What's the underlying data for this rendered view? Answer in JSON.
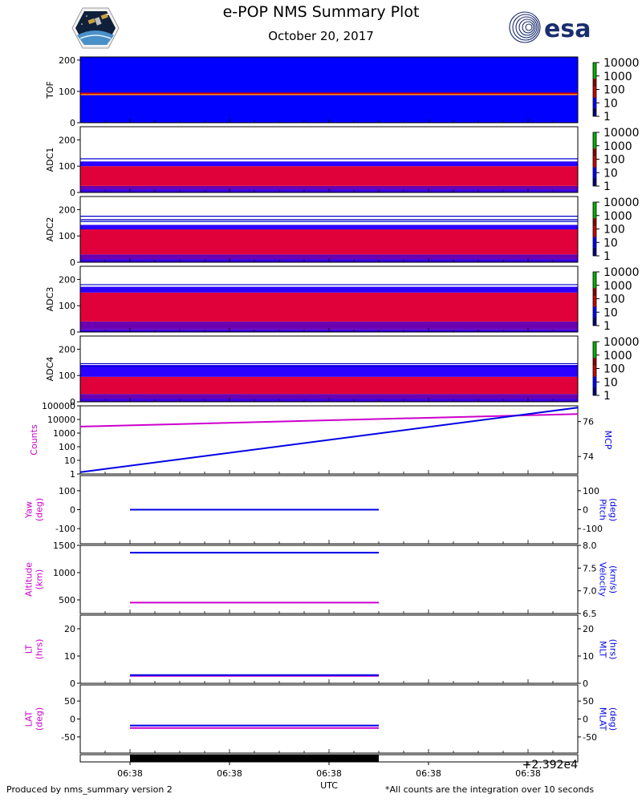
{
  "header": {
    "title": "e-POP NMS Summary Plot",
    "date": "October 20, 2017",
    "esa_logo_text": "esa"
  },
  "footer": {
    "left": "Produced by nms_summary version 2",
    "right": "*All counts are the integration over 10 seconds"
  },
  "colors": {
    "magenta": "#cc00cc",
    "blue": "#0000e6",
    "esa_blue": "#1a2e6e"
  },
  "chart_data": {
    "type": "heatmap",
    "title": "e-POP NMS Summary Plot",
    "subtitle": "October 20, 2017",
    "spectrograms": [
      {
        "ylabel": "TOF",
        "ylim": [
          0,
          210
        ],
        "yticks": [
          0,
          100,
          200
        ],
        "bands": [
          [
            0,
            88,
            "#0000ff"
          ],
          [
            88,
            92,
            "#ff7000"
          ],
          [
            92,
            96,
            "#cc0000"
          ],
          [
            96,
            210,
            "#0000ff"
          ]
        ],
        "lines": []
      },
      {
        "ylabel": "ADC1",
        "ylim": [
          0,
          250
        ],
        "yticks": [
          0,
          100,
          200
        ],
        "bands": [
          [
            0,
            12,
            "#3a00dd"
          ],
          [
            12,
            25,
            "#6a00b0"
          ],
          [
            25,
            100,
            "#e0003a"
          ],
          [
            100,
            118,
            "#2a00ff"
          ]
        ],
        "lines": [
          128
        ]
      },
      {
        "ylabel": "ADC2",
        "ylim": [
          0,
          250
        ],
        "yticks": [
          0,
          100,
          200
        ],
        "bands": [
          [
            0,
            12,
            "#3a00dd"
          ],
          [
            12,
            30,
            "#6a00b0"
          ],
          [
            30,
            125,
            "#e0003a"
          ],
          [
            125,
            142,
            "#2a00ff"
          ]
        ],
        "lines": [
          155,
          162,
          175
        ]
      },
      {
        "ylabel": "ADC3",
        "ylim": [
          0,
          250
        ],
        "yticks": [
          0,
          100,
          200
        ],
        "bands": [
          [
            0,
            10,
            "#3a00dd"
          ],
          [
            10,
            40,
            "#6a00b0"
          ],
          [
            40,
            150,
            "#e0003a"
          ],
          [
            150,
            172,
            "#2a00ff"
          ]
        ],
        "lines": [
          180
        ]
      },
      {
        "ylabel": "ADC4",
        "ylim": [
          0,
          250
        ],
        "yticks": [
          0,
          100,
          200
        ],
        "bands": [
          [
            0,
            12,
            "#3a00dd"
          ],
          [
            12,
            30,
            "#6a00b0"
          ],
          [
            30,
            95,
            "#e0003a"
          ],
          [
            95,
            140,
            "#2a00ff"
          ]
        ],
        "lines": [
          135,
          145
        ]
      }
    ],
    "colorbar": {
      "ticks": [
        "10000",
        "1000",
        "100",
        "10",
        "1"
      ]
    },
    "x_ticks": [
      "06:38",
      "06:38",
      "06:38",
      "06:38",
      "06:38"
    ],
    "x_offset_label": "+2.392e4",
    "xlabel": "UTC",
    "data_span_fraction": [
      0.1,
      0.6
    ],
    "panels": [
      {
        "left_label": [
          "Counts"
        ],
        "right_label": [
          "MCP"
        ],
        "left_scale": "log",
        "left_ylim": [
          1,
          100000
        ],
        "left_ticks": [
          "1",
          "10",
          "100",
          "1000",
          "10000",
          "100000"
        ],
        "right_ylim": [
          73.0,
          76.9
        ],
        "right_ticks": [
          "74",
          "76"
        ],
        "series": [
          {
            "name": "Counts",
            "axis": "left",
            "color": "magenta",
            "x": [
              0.0,
              1.0
            ],
            "y": [
              3000,
              25000
            ]
          },
          {
            "name": "MCP",
            "axis": "right",
            "color": "blue",
            "x": [
              0.0,
              1.0
            ],
            "y": [
              73.1,
              76.8
            ]
          }
        ]
      },
      {
        "left_label": [
          "Yaw",
          "(deg)"
        ],
        "right_label": [
          "Pitch",
          "(deg)"
        ],
        "left_ylim": [
          -180,
          180
        ],
        "left_ticks": [
          "-100",
          "0",
          "100"
        ],
        "right_ylim": [
          -180,
          180
        ],
        "right_ticks": [
          "-100",
          "0",
          "100"
        ],
        "series": [
          {
            "name": "Yaw",
            "axis": "left",
            "color": "magenta",
            "x": [
              0.1,
              0.6
            ],
            "y": [
              0,
              0
            ]
          },
          {
            "name": "Pitch",
            "axis": "right",
            "color": "blue",
            "x": [
              0.1,
              0.6
            ],
            "y": [
              0,
              0
            ]
          }
        ]
      },
      {
        "left_label": [
          "Altitude",
          "(km)"
        ],
        "right_label": [
          "Velocity",
          "(km/s)"
        ],
        "left_ylim": [
          250,
          1500
        ],
        "left_ticks": [
          "500",
          "1000",
          "1500"
        ],
        "right_ylim": [
          6.5,
          8.0
        ],
        "right_ticks": [
          "6.5",
          "7.0",
          "7.5",
          "8.0"
        ],
        "series": [
          {
            "name": "Altitude",
            "axis": "left",
            "color": "magenta",
            "x": [
              0.1,
              0.6
            ],
            "y": [
              450,
              450
            ]
          },
          {
            "name": "Velocity",
            "axis": "right",
            "color": "blue",
            "x": [
              0.1,
              0.6
            ],
            "y": [
              7.84,
              7.84
            ]
          }
        ]
      },
      {
        "left_label": [
          "LT",
          "(hrs)"
        ],
        "right_label": [
          "MLT",
          "(hrs)"
        ],
        "left_ylim": [
          0,
          25
        ],
        "left_ticks": [
          "0",
          "10",
          "20"
        ],
        "right_ylim": [
          0,
          25
        ],
        "right_ticks": [
          "0",
          "10",
          "20"
        ],
        "series": [
          {
            "name": "LT",
            "axis": "left",
            "color": "magenta",
            "x": [
              0.1,
              0.6
            ],
            "y": [
              2.7,
              2.7
            ]
          },
          {
            "name": "MLT",
            "axis": "right",
            "color": "blue",
            "x": [
              0.1,
              0.6
            ],
            "y": [
              3.0,
              3.0
            ]
          }
        ]
      },
      {
        "left_label": [
          "LAT",
          "(deg)"
        ],
        "right_label": [
          "MLAT",
          "(deg)"
        ],
        "left_ylim": [
          -95,
          95
        ],
        "left_ticks": [
          "-50",
          "0",
          "50"
        ],
        "right_ylim": [
          -95,
          95
        ],
        "right_ticks": [
          "-50",
          "0",
          "50"
        ],
        "series": [
          {
            "name": "LAT",
            "axis": "left",
            "color": "magenta",
            "x": [
              0.1,
              0.6
            ],
            "y": [
              -25,
              -25
            ]
          },
          {
            "name": "MLAT",
            "axis": "right",
            "color": "blue",
            "x": [
              0.1,
              0.6
            ],
            "y": [
              -18,
              -18
            ]
          }
        ]
      }
    ]
  }
}
